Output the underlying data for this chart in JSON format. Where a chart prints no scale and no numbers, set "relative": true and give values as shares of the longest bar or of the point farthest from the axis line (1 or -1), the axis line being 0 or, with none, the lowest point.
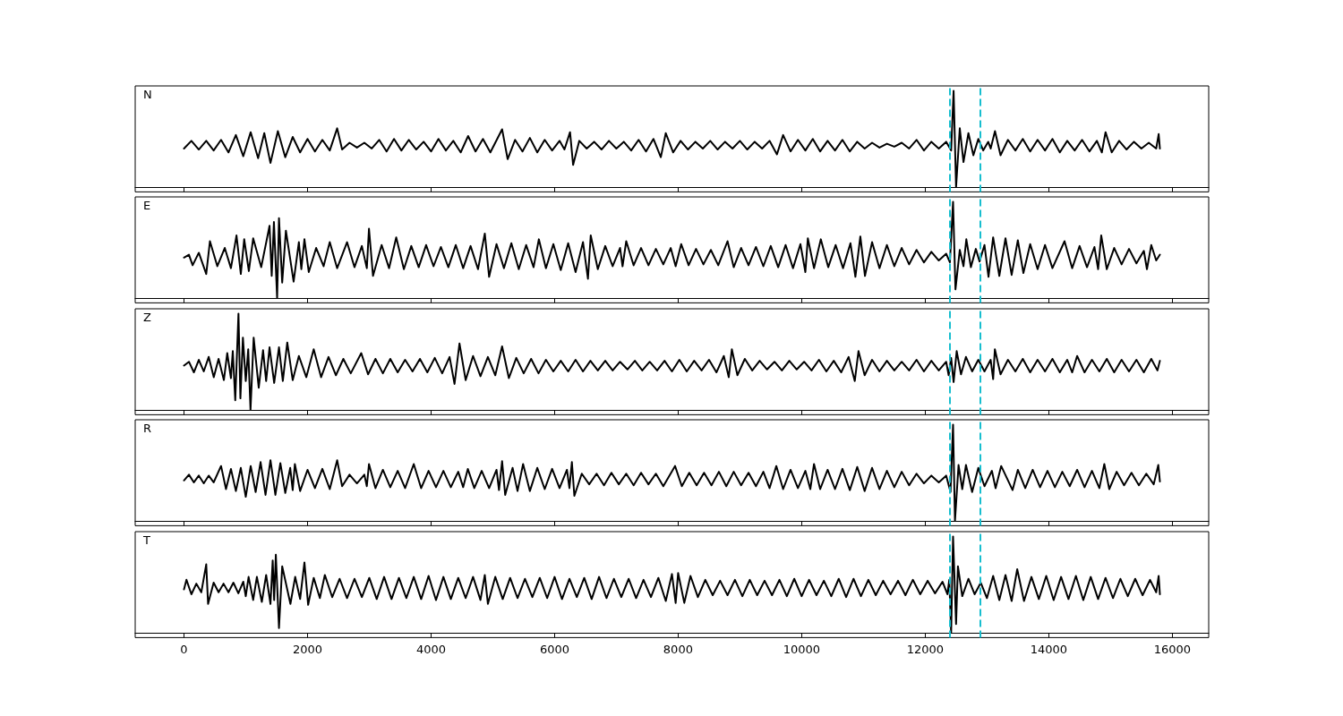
{
  "chart_data": [
    {
      "type": "line",
      "title": "N",
      "relative": true,
      "color": "#000000",
      "xlim": [
        -790,
        16590
      ],
      "xticks": [
        0,
        2000,
        4000,
        6000,
        8000,
        10000,
        12000,
        14000,
        16000
      ],
      "tick_labels": false,
      "ref_lines": [
        {
          "axis": "x",
          "value": 12400,
          "color": "#17becf",
          "line_style": "dashed"
        },
        {
          "axis": "x",
          "value": 12890,
          "color": "#17becf",
          "line_style": "dashed"
        }
      ],
      "x": [
        0,
        120,
        240,
        360,
        480,
        600,
        720,
        840,
        960,
        1080,
        1200,
        1300,
        1400,
        1520,
        1640,
        1760,
        1880,
        2000,
        2120,
        2240,
        2360,
        2480,
        2560,
        2680,
        2800,
        2920,
        3040,
        3160,
        3280,
        3400,
        3520,
        3640,
        3760,
        3880,
        4000,
        4120,
        4240,
        4360,
        4480,
        4600,
        4720,
        4840,
        4960,
        5150,
        5240,
        5360,
        5480,
        5600,
        5720,
        5840,
        5960,
        6080,
        6160,
        6250,
        6300,
        6400,
        6520,
        6640,
        6760,
        6880,
        7000,
        7120,
        7240,
        7360,
        7480,
        7600,
        7720,
        7800,
        7920,
        8040,
        8160,
        8280,
        8400,
        8520,
        8640,
        8760,
        8880,
        9000,
        9120,
        9240,
        9360,
        9480,
        9600,
        9700,
        9820,
        9940,
        10060,
        10180,
        10300,
        10420,
        10540,
        10660,
        10780,
        10900,
        11020,
        11140,
        11260,
        11380,
        11500,
        11620,
        11740,
        11860,
        11980,
        12100,
        12220,
        12340,
        12420,
        12460,
        12500,
        12560,
        12620,
        12700,
        12780,
        12860,
        12940,
        13020,
        13060,
        13130,
        13220,
        13340,
        13460,
        13580,
        13700,
        13820,
        13940,
        14060,
        14180,
        14300,
        14420,
        14540,
        14660,
        14780,
        14860,
        14920,
        15020,
        15140,
        15260,
        15380,
        15500,
        15620,
        15740,
        15780,
        15800
      ],
      "values": [
        0.4,
        0.48,
        0.39,
        0.48,
        0.38,
        0.49,
        0.36,
        0.54,
        0.32,
        0.57,
        0.3,
        0.56,
        0.25,
        0.58,
        0.31,
        0.52,
        0.36,
        0.5,
        0.37,
        0.49,
        0.38,
        0.61,
        0.39,
        0.46,
        0.41,
        0.46,
        0.4,
        0.49,
        0.37,
        0.5,
        0.38,
        0.49,
        0.39,
        0.47,
        0.37,
        0.5,
        0.38,
        0.48,
        0.36,
        0.53,
        0.37,
        0.5,
        0.36,
        0.6,
        0.29,
        0.49,
        0.37,
        0.51,
        0.36,
        0.49,
        0.38,
        0.48,
        0.39,
        0.57,
        0.23,
        0.48,
        0.4,
        0.47,
        0.39,
        0.48,
        0.4,
        0.47,
        0.38,
        0.49,
        0.37,
        0.5,
        0.31,
        0.56,
        0.36,
        0.48,
        0.39,
        0.47,
        0.4,
        0.48,
        0.39,
        0.47,
        0.4,
        0.48,
        0.39,
        0.47,
        0.4,
        0.48,
        0.34,
        0.54,
        0.37,
        0.49,
        0.38,
        0.5,
        0.37,
        0.48,
        0.38,
        0.49,
        0.37,
        0.47,
        0.4,
        0.46,
        0.41,
        0.45,
        0.42,
        0.46,
        0.4,
        0.49,
        0.38,
        0.47,
        0.4,
        0.47,
        0.38,
        1,
        0,
        0.61,
        0.26,
        0.56,
        0.33,
        0.5,
        0.38,
        0.47,
        0.4,
        0.58,
        0.33,
        0.49,
        0.38,
        0.5,
        0.37,
        0.49,
        0.38,
        0.5,
        0.36,
        0.48,
        0.38,
        0.49,
        0.37,
        0.48,
        0.36,
        0.57,
        0.36,
        0.48,
        0.39,
        0.47,
        0.4,
        0.46,
        0.4,
        0.55,
        0.4
      ]
    },
    {
      "type": "line",
      "title": "E",
      "relative": true,
      "color": "#000000",
      "xlim": [
        -790,
        16590
      ],
      "xticks": [
        0,
        2000,
        4000,
        6000,
        8000,
        10000,
        12000,
        14000,
        16000
      ],
      "tick_labels": false,
      "ref_lines": [
        {
          "axis": "x",
          "value": 12400,
          "color": "#17becf",
          "line_style": "dashed"
        },
        {
          "axis": "x",
          "value": 12890,
          "color": "#17becf",
          "line_style": "dashed"
        }
      ],
      "x": [
        0,
        80,
        140,
        240,
        360,
        420,
        540,
        660,
        760,
        850,
        920,
        975,
        1050,
        1120,
        1250,
        1385,
        1420,
        1456,
        1508,
        1538,
        1590,
        1650,
        1775,
        1860,
        1900,
        1950,
        2020,
        2140,
        2260,
        2360,
        2480,
        2640,
        2760,
        2880,
        2960,
        2995,
        3060,
        3200,
        3320,
        3436,
        3560,
        3680,
        3800,
        3920,
        4040,
        4160,
        4280,
        4400,
        4520,
        4640,
        4760,
        4870,
        4940,
        5060,
        5180,
        5300,
        5420,
        5540,
        5660,
        5745,
        5860,
        5980,
        6100,
        6220,
        6340,
        6460,
        6540,
        6585,
        6700,
        6820,
        6940,
        7060,
        7100,
        7160,
        7280,
        7400,
        7520,
        7640,
        7760,
        7880,
        7960,
        8050,
        8170,
        8290,
        8410,
        8530,
        8650,
        8800,
        8900,
        9020,
        9140,
        9260,
        9380,
        9500,
        9620,
        9740,
        9860,
        9980,
        10060,
        10100,
        10200,
        10310,
        10430,
        10550,
        10670,
        10790,
        10870,
        10950,
        11025,
        11140,
        11260,
        11380,
        11500,
        11620,
        11740,
        11860,
        11980,
        12100,
        12220,
        12340,
        12400,
        12451,
        12490,
        12560,
        12620,
        12666,
        12740,
        12820,
        12880,
        12960,
        13025,
        13100,
        13200,
        13300,
        13400,
        13500,
        13590,
        13700,
        13820,
        13940,
        14060,
        14256,
        14380,
        14500,
        14620,
        14740,
        14800,
        14850,
        14940,
        15060,
        15180,
        15300,
        15420,
        15540,
        15590,
        15660,
        15740,
        15800
      ],
      "values": [
        0.42,
        0.45,
        0.34,
        0.47,
        0.25,
        0.59,
        0.33,
        0.52,
        0.31,
        0.65,
        0.25,
        0.61,
        0.28,
        0.62,
        0.32,
        0.75,
        0.23,
        0.79,
        0,
        0.83,
        0.16,
        0.7,
        0.17,
        0.58,
        0.3,
        0.61,
        0.27,
        0.52,
        0.33,
        0.58,
        0.31,
        0.58,
        0.32,
        0.54,
        0.31,
        0.72,
        0.23,
        0.55,
        0.31,
        0.63,
        0.3,
        0.54,
        0.32,
        0.55,
        0.33,
        0.53,
        0.32,
        0.55,
        0.31,
        0.54,
        0.3,
        0.67,
        0.22,
        0.56,
        0.31,
        0.57,
        0.3,
        0.55,
        0.32,
        0.61,
        0.31,
        0.56,
        0.29,
        0.57,
        0.27,
        0.58,
        0.2,
        0.65,
        0.3,
        0.54,
        0.33,
        0.52,
        0.33,
        0.59,
        0.34,
        0.52,
        0.34,
        0.51,
        0.35,
        0.52,
        0.33,
        0.56,
        0.34,
        0.51,
        0.35,
        0.5,
        0.34,
        0.59,
        0.32,
        0.52,
        0.34,
        0.53,
        0.33,
        0.54,
        0.32,
        0.55,
        0.31,
        0.56,
        0.27,
        0.62,
        0.31,
        0.61,
        0.32,
        0.55,
        0.31,
        0.57,
        0.22,
        0.64,
        0.23,
        0.58,
        0.31,
        0.55,
        0.33,
        0.52,
        0.35,
        0.5,
        0.37,
        0.48,
        0.39,
        0.46,
        0.37,
        1,
        0.09,
        0.5,
        0.33,
        0.61,
        0.32,
        0.51,
        0.38,
        0.55,
        0.22,
        0.63,
        0.23,
        0.62,
        0.24,
        0.6,
        0.26,
        0.56,
        0.3,
        0.55,
        0.31,
        0.59,
        0.31,
        0.54,
        0.32,
        0.53,
        0.3,
        0.65,
        0.3,
        0.52,
        0.35,
        0.51,
        0.36,
        0.49,
        0.3,
        0.55,
        0.39,
        0.45
      ]
    },
    {
      "type": "line",
      "title": "Z",
      "relative": true,
      "color": "#000000",
      "xlim": [
        -790,
        16590
      ],
      "xticks": [
        0,
        2000,
        4000,
        6000,
        8000,
        10000,
        12000,
        14000,
        16000
      ],
      "tick_labels": false,
      "ref_lines": [
        {
          "axis": "x",
          "value": 12400,
          "color": "#17becf",
          "line_style": "dashed"
        },
        {
          "axis": "x",
          "value": 12890,
          "color": "#17becf",
          "line_style": "dashed"
        }
      ],
      "x": [
        0,
        80,
        160,
        240,
        320,
        400,
        482,
        560,
        646,
        700,
        760,
        790,
        830,
        882,
        913,
        954,
        1000,
        1040,
        1077,
        1128,
        1210,
        1280,
        1330,
        1385,
        1460,
        1538,
        1600,
        1672,
        1760,
        1860,
        1980,
        2100,
        2220,
        2340,
        2460,
        2580,
        2700,
        2870,
        2980,
        3100,
        3220,
        3340,
        3460,
        3580,
        3700,
        3820,
        3940,
        4060,
        4180,
        4300,
        4380,
        4460,
        4560,
        4680,
        4800,
        4920,
        5040,
        5150,
        5260,
        5380,
        5500,
        5620,
        5740,
        5860,
        5980,
        6100,
        6220,
        6340,
        6460,
        6580,
        6700,
        6820,
        6940,
        7060,
        7180,
        7300,
        7420,
        7540,
        7660,
        7780,
        7900,
        8020,
        8140,
        8260,
        8380,
        8500,
        8620,
        8740,
        8820,
        8870,
        8960,
        9080,
        9200,
        9320,
        9440,
        9560,
        9680,
        9800,
        9920,
        10040,
        10160,
        10280,
        10400,
        10520,
        10640,
        10760,
        10860,
        10920,
        11020,
        11140,
        11260,
        11380,
        11500,
        11620,
        11740,
        11860,
        11980,
        12100,
        12220,
        12340,
        12380,
        12420,
        12460,
        12510,
        12580,
        12660,
        12760,
        12860,
        12960,
        13060,
        13100,
        13128,
        13220,
        13340,
        13460,
        13580,
        13700,
        13820,
        13940,
        14060,
        14180,
        14300,
        14380,
        14460,
        14580,
        14700,
        14820,
        14940,
        15060,
        15180,
        15300,
        15420,
        15540,
        15660,
        15760,
        15800
      ],
      "values": [
        0.46,
        0.5,
        0.39,
        0.52,
        0.4,
        0.55,
        0.34,
        0.53,
        0.31,
        0.59,
        0.33,
        0.61,
        0.1,
        1,
        0.12,
        0.75,
        0.3,
        0.63,
        0,
        0.75,
        0.23,
        0.62,
        0.3,
        0.65,
        0.28,
        0.65,
        0.3,
        0.7,
        0.31,
        0.56,
        0.34,
        0.63,
        0.34,
        0.55,
        0.36,
        0.53,
        0.38,
        0.59,
        0.37,
        0.53,
        0.38,
        0.53,
        0.39,
        0.52,
        0.4,
        0.53,
        0.39,
        0.54,
        0.38,
        0.55,
        0.27,
        0.69,
        0.31,
        0.56,
        0.35,
        0.55,
        0.36,
        0.66,
        0.33,
        0.54,
        0.38,
        0.53,
        0.38,
        0.52,
        0.4,
        0.51,
        0.4,
        0.52,
        0.4,
        0.51,
        0.41,
        0.51,
        0.41,
        0.5,
        0.42,
        0.51,
        0.41,
        0.5,
        0.41,
        0.51,
        0.4,
        0.52,
        0.4,
        0.51,
        0.41,
        0.52,
        0.39,
        0.56,
        0.34,
        0.63,
        0.36,
        0.53,
        0.41,
        0.51,
        0.42,
        0.5,
        0.41,
        0.51,
        0.42,
        0.5,
        0.41,
        0.52,
        0.4,
        0.51,
        0.39,
        0.55,
        0.3,
        0.61,
        0.36,
        0.52,
        0.4,
        0.51,
        0.41,
        0.5,
        0.41,
        0.52,
        0.4,
        0.51,
        0.41,
        0.5,
        0.36,
        0.54,
        0.29,
        0.61,
        0.37,
        0.55,
        0.4,
        0.52,
        0.4,
        0.52,
        0.32,
        0.63,
        0.37,
        0.52,
        0.4,
        0.53,
        0.39,
        0.52,
        0.4,
        0.53,
        0.39,
        0.52,
        0.39,
        0.56,
        0.39,
        0.52,
        0.4,
        0.53,
        0.39,
        0.52,
        0.4,
        0.52,
        0.39,
        0.53,
        0.41,
        0.51
      ]
    },
    {
      "type": "line",
      "title": "R",
      "relative": true,
      "color": "#000000",
      "xlim": [
        -790,
        16590
      ],
      "xticks": [
        0,
        2000,
        4000,
        6000,
        8000,
        10000,
        12000,
        14000,
        16000
      ],
      "tick_labels": false,
      "ref_lines": [
        {
          "axis": "x",
          "value": 12400,
          "color": "#17becf",
          "line_style": "dashed"
        },
        {
          "axis": "x",
          "value": 12890,
          "color": "#17becf",
          "line_style": "dashed"
        }
      ],
      "x": [
        0,
        80,
        160,
        240,
        320,
        400,
        480,
        600,
        680,
        760,
        840,
        920,
        1000,
        1080,
        1160,
        1240,
        1320,
        1400,
        1480,
        1560,
        1640,
        1720,
        1760,
        1795,
        1880,
        2000,
        2120,
        2240,
        2360,
        2480,
        2560,
        2680,
        2800,
        2920,
        2960,
        2995,
        3100,
        3220,
        3340,
        3460,
        3580,
        3720,
        3840,
        3960,
        4080,
        4200,
        4320,
        4440,
        4520,
        4595,
        4700,
        4820,
        4940,
        5060,
        5100,
        5150,
        5200,
        5320,
        5400,
        5490,
        5600,
        5720,
        5840,
        5960,
        6080,
        6200,
        6240,
        6280,
        6320,
        6440,
        6560,
        6680,
        6800,
        6920,
        7040,
        7160,
        7280,
        7400,
        7520,
        7640,
        7760,
        7950,
        8060,
        8180,
        8300,
        8420,
        8540,
        8660,
        8780,
        8900,
        9020,
        9140,
        9260,
        9380,
        9480,
        9590,
        9700,
        9820,
        9940,
        10060,
        10140,
        10200,
        10300,
        10420,
        10540,
        10660,
        10780,
        10900,
        11020,
        11140,
        11260,
        11380,
        11500,
        11620,
        11740,
        11860,
        11980,
        12100,
        12220,
        12340,
        12410,
        12451,
        12482,
        12540,
        12600,
        12660,
        12760,
        12860,
        12960,
        13080,
        13140,
        13230,
        13415,
        13500,
        13620,
        13740,
        13860,
        13980,
        14100,
        14220,
        14340,
        14460,
        14580,
        14700,
        14820,
        14900,
        14980,
        15100,
        15220,
        15340,
        15460,
        15580,
        15700,
        15774,
        15800
      ],
      "values": [
        0.42,
        0.48,
        0.4,
        0.47,
        0.39,
        0.47,
        0.4,
        0.57,
        0.33,
        0.54,
        0.31,
        0.55,
        0.25,
        0.57,
        0.3,
        0.61,
        0.27,
        0.63,
        0.27,
        0.6,
        0.29,
        0.55,
        0.32,
        0.59,
        0.31,
        0.53,
        0.34,
        0.54,
        0.33,
        0.63,
        0.36,
        0.48,
        0.39,
        0.48,
        0.36,
        0.59,
        0.34,
        0.53,
        0.35,
        0.52,
        0.34,
        0.59,
        0.34,
        0.52,
        0.35,
        0.52,
        0.35,
        0.51,
        0.35,
        0.54,
        0.34,
        0.52,
        0.34,
        0.53,
        0.32,
        0.62,
        0.27,
        0.55,
        0.31,
        0.59,
        0.31,
        0.55,
        0.33,
        0.54,
        0.34,
        0.53,
        0.34,
        0.61,
        0.26,
        0.49,
        0.38,
        0.49,
        0.37,
        0.5,
        0.38,
        0.49,
        0.37,
        0.5,
        0.38,
        0.49,
        0.36,
        0.57,
        0.36,
        0.5,
        0.37,
        0.5,
        0.37,
        0.51,
        0.36,
        0.51,
        0.37,
        0.5,
        0.36,
        0.51,
        0.34,
        0.57,
        0.33,
        0.53,
        0.34,
        0.52,
        0.33,
        0.59,
        0.33,
        0.53,
        0.33,
        0.54,
        0.32,
        0.56,
        0.31,
        0.55,
        0.33,
        0.52,
        0.35,
        0.51,
        0.37,
        0.49,
        0.39,
        0.47,
        0.4,
        0.47,
        0.3,
        1,
        0,
        0.58,
        0.33,
        0.58,
        0.3,
        0.55,
        0.36,
        0.52,
        0.34,
        0.57,
        0.32,
        0.53,
        0.34,
        0.53,
        0.35,
        0.52,
        0.35,
        0.51,
        0.36,
        0.53,
        0.35,
        0.52,
        0.34,
        0.59,
        0.33,
        0.51,
        0.37,
        0.5,
        0.37,
        0.49,
        0.38,
        0.58,
        0.41
      ]
    },
    {
      "type": "line",
      "title": "T",
      "relative": true,
      "color": "#000000",
      "xlim": [
        -790,
        16590
      ],
      "xticks": [
        0,
        2000,
        4000,
        6000,
        8000,
        10000,
        12000,
        14000,
        16000
      ],
      "tick_labels": "x",
      "ref_lines": [
        {
          "axis": "x",
          "value": 12400,
          "color": "#17becf",
          "line_style": "dashed"
        },
        {
          "axis": "x",
          "value": 12890,
          "color": "#17becf",
          "line_style": "dashed"
        }
      ],
      "x": [
        0,
        40,
        120,
        200,
        280,
        360,
        390,
        480,
        560,
        640,
        720,
        800,
        880,
        960,
        1000,
        1046,
        1120,
        1180,
        1260,
        1330,
        1400,
        1436,
        1460,
        1487,
        1538,
        1590,
        1723,
        1800,
        1880,
        1950,
        2010,
        2100,
        2200,
        2280,
        2400,
        2520,
        2640,
        2760,
        2880,
        3000,
        3120,
        3240,
        3360,
        3480,
        3600,
        3720,
        3840,
        3960,
        4080,
        4200,
        4320,
        4440,
        4560,
        4680,
        4800,
        4870,
        4920,
        5040,
        5160,
        5280,
        5400,
        5520,
        5640,
        5760,
        5880,
        6000,
        6120,
        6240,
        6360,
        6480,
        6600,
        6720,
        6840,
        6960,
        7080,
        7200,
        7320,
        7440,
        7560,
        7680,
        7800,
        7900,
        7960,
        8000,
        8100,
        8200,
        8320,
        8440,
        8560,
        8680,
        8800,
        8920,
        9040,
        9160,
        9280,
        9400,
        9520,
        9640,
        9760,
        9880,
        10000,
        10120,
        10240,
        10360,
        10480,
        10600,
        10720,
        10840,
        10960,
        11080,
        11200,
        11320,
        11440,
        11560,
        11680,
        11800,
        11920,
        12040,
        12160,
        12280,
        12360,
        12390,
        12420,
        12451,
        12500,
        12530,
        12600,
        12700,
        12800,
        12900,
        13000,
        13100,
        13200,
        13300,
        13400,
        13490,
        13600,
        13720,
        13840,
        13960,
        14080,
        14200,
        14320,
        14440,
        14560,
        14680,
        14800,
        14920,
        15040,
        15160,
        15280,
        15400,
        15520,
        15640,
        15740,
        15780,
        15800
      ],
      "values": [
        0.45,
        0.55,
        0.4,
        0.51,
        0.42,
        0.71,
        0.3,
        0.52,
        0.42,
        0.51,
        0.42,
        0.52,
        0.41,
        0.53,
        0.38,
        0.58,
        0.34,
        0.58,
        0.32,
        0.6,
        0.3,
        0.75,
        0.34,
        0.81,
        0.05,
        0.69,
        0.3,
        0.58,
        0.35,
        0.73,
        0.29,
        0.57,
        0.36,
        0.6,
        0.37,
        0.56,
        0.36,
        0.56,
        0.37,
        0.57,
        0.35,
        0.58,
        0.35,
        0.57,
        0.36,
        0.58,
        0.35,
        0.59,
        0.34,
        0.58,
        0.35,
        0.57,
        0.36,
        0.58,
        0.34,
        0.6,
        0.3,
        0.58,
        0.35,
        0.57,
        0.36,
        0.56,
        0.37,
        0.57,
        0.36,
        0.58,
        0.35,
        0.56,
        0.37,
        0.57,
        0.35,
        0.58,
        0.36,
        0.56,
        0.37,
        0.56,
        0.36,
        0.55,
        0.37,
        0.57,
        0.33,
        0.61,
        0.31,
        0.62,
        0.31,
        0.59,
        0.37,
        0.55,
        0.39,
        0.54,
        0.39,
        0.55,
        0.38,
        0.55,
        0.39,
        0.54,
        0.39,
        0.55,
        0.38,
        0.56,
        0.38,
        0.55,
        0.39,
        0.54,
        0.38,
        0.56,
        0.37,
        0.56,
        0.38,
        0.55,
        0.39,
        0.54,
        0.4,
        0.54,
        0.39,
        0.55,
        0.4,
        0.54,
        0.41,
        0.53,
        0.4,
        0.55,
        0,
        1,
        0.09,
        0.69,
        0.38,
        0.56,
        0.4,
        0.52,
        0.36,
        0.59,
        0.34,
        0.6,
        0.33,
        0.66,
        0.33,
        0.58,
        0.35,
        0.59,
        0.34,
        0.58,
        0.35,
        0.59,
        0.34,
        0.58,
        0.35,
        0.57,
        0.36,
        0.56,
        0.38,
        0.56,
        0.39,
        0.55,
        0.42,
        0.59,
        0.4
      ]
    }
  ]
}
